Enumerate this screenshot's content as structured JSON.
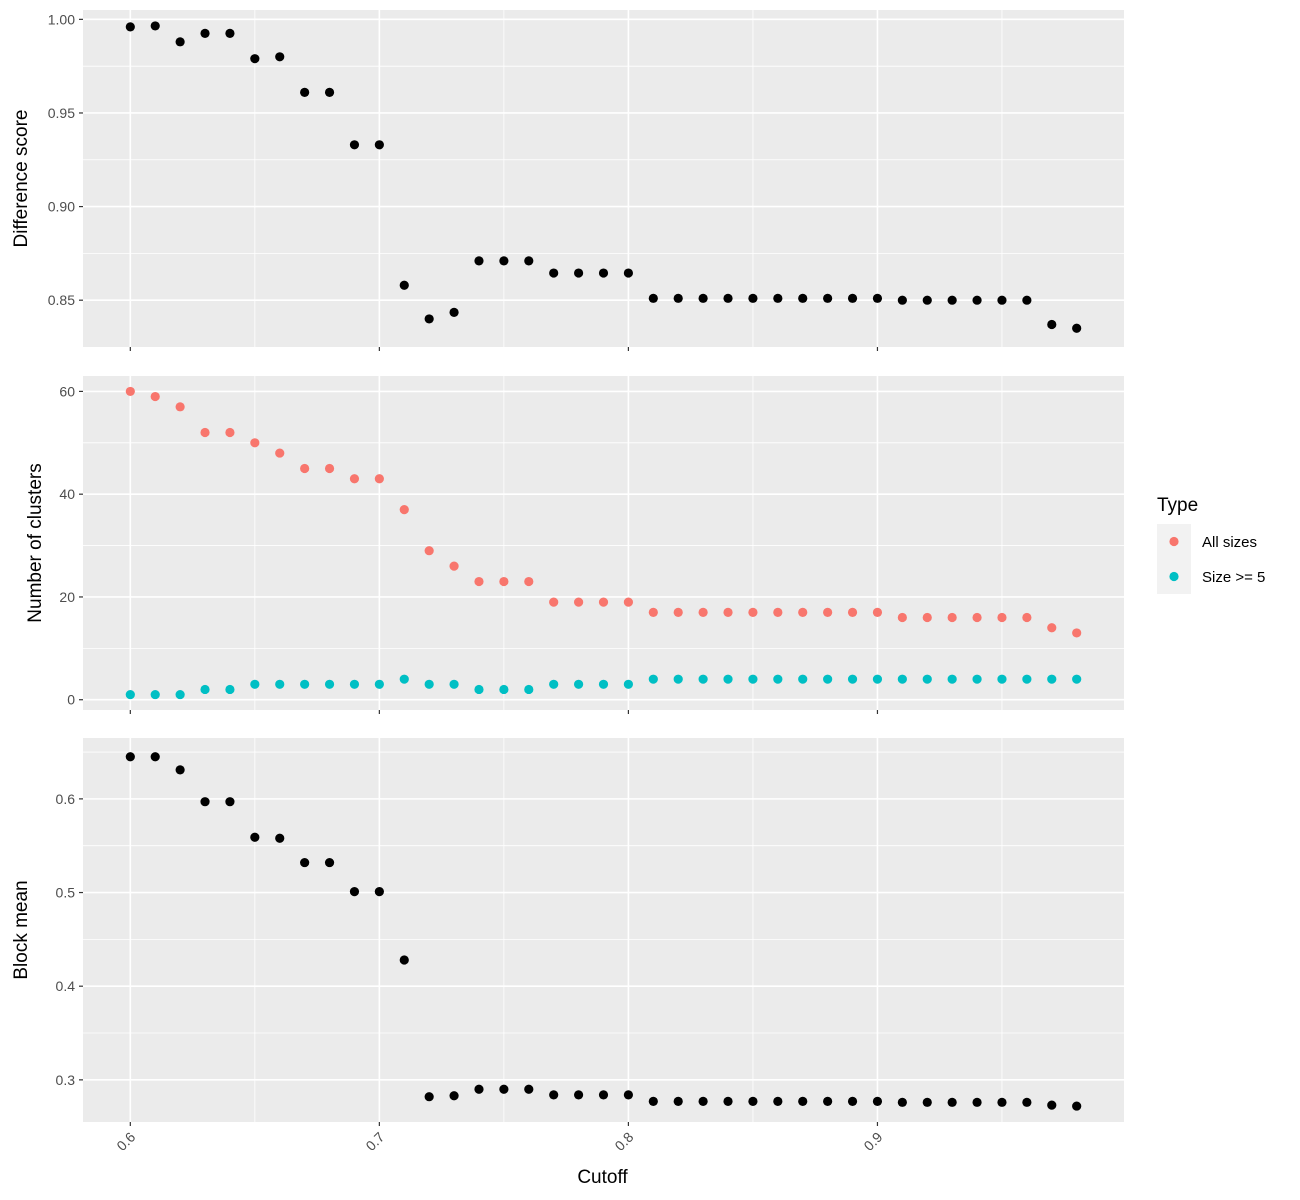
{
  "chart_data": {
    "type": "scatter",
    "x_label": "Cutoff",
    "x_range": [
      0.581,
      0.999
    ],
    "x_ticks": [
      "0.6",
      "0.7",
      "0.8",
      "0.9"
    ],
    "x": [
      0.6,
      0.61,
      0.62,
      0.63,
      0.64,
      0.65,
      0.66,
      0.67,
      0.68,
      0.69,
      0.7,
      0.71,
      0.72,
      0.73,
      0.74,
      0.75,
      0.76,
      0.77,
      0.78,
      0.79,
      0.8,
      0.81,
      0.82,
      0.83,
      0.84,
      0.85,
      0.86,
      0.87,
      0.88,
      0.89,
      0.9,
      0.91,
      0.92,
      0.93,
      0.94,
      0.95,
      0.96,
      0.97,
      0.98
    ],
    "grid": "on",
    "panels": [
      {
        "ylabel": "Difference score",
        "ylim": [
          0.825,
          1.005
        ],
        "y_ticks": [
          "0.85",
          "0.90",
          "0.95",
          "1.00"
        ],
        "series": [
          {
            "color": "#000000",
            "values": [
              0.996,
              0.9965,
              0.988,
              0.9925,
              0.9925,
              0.979,
              0.98,
              0.961,
              0.961,
              0.933,
              0.933,
              0.858,
              0.84,
              0.8435,
              0.871,
              0.871,
              0.871,
              0.8645,
              0.8645,
              0.8645,
              0.8645,
              0.851,
              0.851,
              0.851,
              0.851,
              0.851,
              0.851,
              0.851,
              0.851,
              0.851,
              0.851,
              0.85,
              0.85,
              0.85,
              0.85,
              0.85,
              0.85,
              0.837,
              0.835
            ]
          }
        ]
      },
      {
        "ylabel": "Number of clusters",
        "ylim": [
          -2,
          63
        ],
        "y_ticks": [
          "0",
          "20",
          "40",
          "60"
        ],
        "series": [
          {
            "name": "All sizes",
            "color": "#F8766D",
            "values": [
              60,
              59,
              57,
              52,
              52,
              50,
              48,
              45,
              45,
              43,
              43,
              37,
              29,
              26,
              23,
              23,
              23,
              19,
              19,
              19,
              19,
              17,
              17,
              17,
              17,
              17,
              17,
              17,
              17,
              17,
              17,
              16,
              16,
              16,
              16,
              16,
              16,
              14,
              13
            ]
          },
          {
            "name": "Size >= 5",
            "color": "#00BFC4",
            "values": [
              1,
              1,
              1,
              2,
              2,
              3,
              3,
              3,
              3,
              3,
              3,
              4,
              3,
              3,
              2,
              2,
              2,
              3,
              3,
              3,
              3,
              4,
              4,
              4,
              4,
              4,
              4,
              4,
              4,
              4,
              4,
              4,
              4,
              4,
              4,
              4,
              4,
              4,
              4
            ]
          }
        ]
      },
      {
        "ylabel": "Block mean",
        "ylim": [
          0.255,
          0.665
        ],
        "y_ticks": [
          "0.3",
          "0.4",
          "0.5",
          "0.6"
        ],
        "series": [
          {
            "color": "#000000",
            "values": [
              0.645,
              0.645,
              0.631,
              0.597,
              0.597,
              0.559,
              0.558,
              0.532,
              0.532,
              0.501,
              0.501,
              0.428,
              0.282,
              0.283,
              0.29,
              0.29,
              0.29,
              0.284,
              0.284,
              0.284,
              0.284,
              0.277,
              0.277,
              0.277,
              0.277,
              0.277,
              0.277,
              0.277,
              0.277,
              0.277,
              0.277,
              0.276,
              0.276,
              0.276,
              0.276,
              0.276,
              0.276,
              0.273,
              0.272
            ]
          }
        ]
      }
    ],
    "legend": {
      "title": "Type",
      "placement": "right",
      "items": [
        {
          "label": "All sizes",
          "color": "#F8766D"
        },
        {
          "label": "Size >= 5",
          "color": "#00BFC4"
        }
      ]
    }
  }
}
